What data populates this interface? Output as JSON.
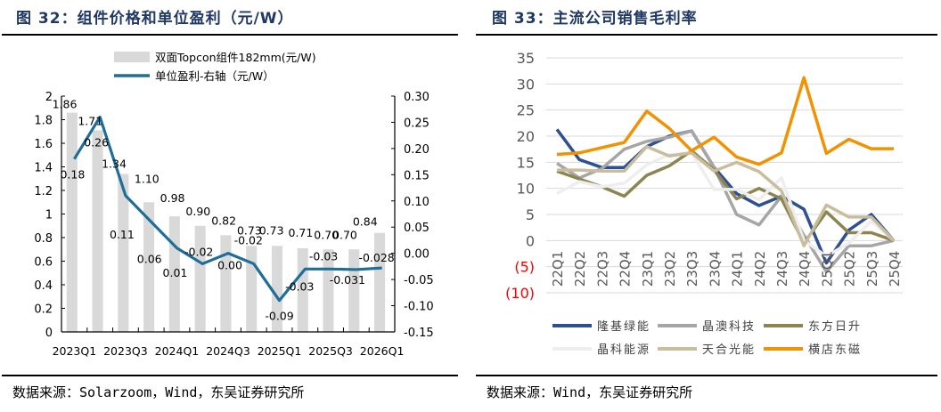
{
  "left": {
    "title": "图 32：组件价格和单位盈利（元/W）",
    "source": "数据来源：Solarzoom，Wind，东吴证券研究所"
  },
  "right": {
    "title": "图 33：主流公司销售毛利率",
    "source": "数据来源：Wind，东吴证券研究所"
  },
  "chart_data": [
    {
      "type": "bar+line",
      "categories": [
        "2023Q1",
        "2023Q2",
        "2023Q3",
        "2023Q4",
        "2024Q1",
        "2024Q2",
        "2024Q3",
        "2024Q4",
        "2025Q1",
        "2025Q2",
        "2025Q3",
        "2025Q4",
        "2026Q1"
      ],
      "x_tick_labels": [
        "2023Q1",
        "2023Q3",
        "2024Q1",
        "2024Q3",
        "2025Q1",
        "2025Q3",
        "2026Q1"
      ],
      "series": [
        {
          "name": "双面Topcon组件182mm(元/W)",
          "type": "bar",
          "axis": "left",
          "color": "#d9d9d9",
          "values": [
            1.86,
            1.71,
            1.34,
            1.1,
            0.98,
            0.9,
            0.82,
            0.73,
            0.73,
            0.71,
            0.7,
            0.7,
            0.84
          ],
          "labels": [
            "1.86",
            "1.71",
            "1.34",
            "1.10",
            "0.98",
            "0.90",
            "0.82",
            "0.73",
            "0.73",
            "0.71",
            "0.70",
            "0.70",
            "0.84"
          ]
        },
        {
          "name": "单位盈利-右轴（元/W）",
          "type": "line",
          "axis": "right",
          "color": "#1f6e99",
          "values": [
            0.18,
            0.26,
            0.11,
            0.06,
            0.01,
            -0.02,
            0.0,
            -0.02,
            -0.09,
            -0.03,
            -0.03,
            -0.031,
            -0.028
          ],
          "labels": [
            "0.18",
            "0.26",
            "0.11",
            "0.06",
            "0.01",
            "-0.02",
            "0.00",
            "-0.02",
            "-0.09",
            "-0.03",
            "-0.03",
            "-0.031",
            "-0.028"
          ]
        }
      ],
      "ylim_left": [
        0,
        2
      ],
      "yticks_left": [
        "0",
        "0.2",
        "0.4",
        "0.6",
        "0.8",
        "1",
        "1.2",
        "1.4",
        "1.6",
        "1.8",
        "2"
      ],
      "ylim_right": [
        -0.15,
        0.3
      ],
      "yticks_right": [
        "-0.15",
        "-0.10",
        "-0.05",
        "0.00",
        "0.05",
        "0.10",
        "0.15",
        "0.20",
        "0.25",
        "0.30"
      ],
      "legend_placement": "top",
      "grid": false
    },
    {
      "type": "line",
      "categories": [
        "22Q1",
        "22Q2",
        "22Q3",
        "22Q4",
        "23Q1",
        "23Q2",
        "23Q3",
        "23Q4",
        "24Q1",
        "24Q2",
        "24Q3",
        "24Q4",
        "25Q1",
        "25Q2",
        "25Q3",
        "25Q4"
      ],
      "series": [
        {
          "name": "隆基绿能",
          "color": "#2e5090",
          "values": [
            21.3,
            15.5,
            14,
            14,
            18,
            20,
            21,
            14,
            9,
            6.7,
            8.5,
            6,
            -4.3,
            2,
            5,
            0
          ]
        },
        {
          "name": "晶澳科技",
          "color": "#a6a6a6",
          "values": [
            14.8,
            12,
            13.8,
            17.5,
            19,
            19.8,
            21,
            14,
            5,
            3,
            8.5,
            1,
            -6,
            -1,
            -1,
            0
          ]
        },
        {
          "name": "东方日升",
          "color": "#8c8552",
          "values": [
            13.3,
            11.8,
            10.3,
            8.5,
            12.5,
            14.3,
            17.2,
            13.5,
            8,
            10,
            8,
            -0.5,
            5.5,
            1.5,
            1.5,
            0
          ]
        },
        {
          "name": "晶科能源",
          "color": "#eeeeee",
          "values": [
            9,
            11.3,
            10.3,
            11,
            14.5,
            16.5,
            16.8,
            9.8,
            9.8,
            7.8,
            12,
            0,
            -3,
            -0.5,
            3.7,
            0
          ]
        },
        {
          "name": "天合光能",
          "color": "#c8bd9c",
          "values": [
            13.5,
            13.5,
            13.3,
            13.3,
            18,
            16.2,
            16.8,
            13.3,
            15,
            13.2,
            9.5,
            -1,
            6.8,
            4.5,
            4.5,
            0
          ]
        },
        {
          "name": "横店东磁",
          "color": "#f39200",
          "values": [
            16.5,
            16.8,
            17.8,
            18.8,
            24.8,
            21.5,
            17.2,
            19.8,
            16,
            14.6,
            16.8,
            31.2,
            16.7,
            19.4,
            17.6,
            17.6
          ]
        }
      ],
      "ylim": [
        -10,
        35
      ],
      "yticks": [
        "(10)",
        "(5)",
        "0",
        "5",
        "10",
        "15",
        "20",
        "25",
        "30",
        "35"
      ],
      "negative_tick_color": "#ff0000",
      "legend_placement": "bottom",
      "grid": true
    }
  ]
}
